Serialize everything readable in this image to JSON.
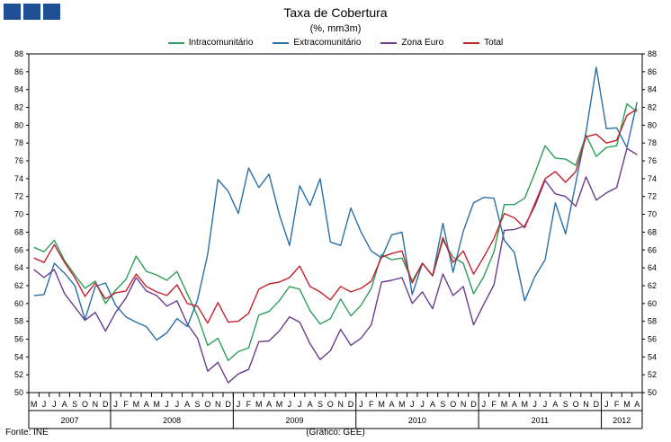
{
  "chart_data": {
    "type": "line",
    "title": "Taxa de Cobertura",
    "subtitle": "(%, mm3m)",
    "ylim": [
      50,
      88
    ],
    "yticks": [
      50,
      52,
      54,
      56,
      58,
      60,
      62,
      64,
      66,
      68,
      70,
      72,
      74,
      76,
      78,
      80,
      82,
      84,
      86,
      88
    ],
    "grid": false,
    "legend_position": "top",
    "month_labels": [
      "M",
      "J",
      "J",
      "A",
      "S",
      "O",
      "N",
      "D",
      "J",
      "F",
      "M",
      "A",
      "M",
      "J",
      "J",
      "A",
      "S",
      "O",
      "N",
      "D",
      "J",
      "F",
      "M",
      "A",
      "M",
      "J",
      "J",
      "A",
      "S",
      "O",
      "N",
      "D",
      "J",
      "F",
      "M",
      "A",
      "M",
      "J",
      "J",
      "A",
      "S",
      "O",
      "N",
      "D",
      "J",
      "F",
      "M",
      "A",
      "M",
      "J",
      "J",
      "A",
      "S",
      "O",
      "N",
      "D",
      "J",
      "F",
      "M",
      "A"
    ],
    "years": [
      {
        "label": "2007",
        "start": 0,
        "end": 8
      },
      {
        "label": "2008",
        "start": 8,
        "end": 20
      },
      {
        "label": "2009",
        "start": 20,
        "end": 32
      },
      {
        "label": "2010",
        "start": 32,
        "end": 44
      },
      {
        "label": "2011",
        "start": 44,
        "end": 56
      },
      {
        "label": "2012",
        "start": 56,
        "end": 60
      }
    ],
    "series": [
      {
        "name": "Intracomunitário",
        "color": "#2e9e5b",
        "values": [
          66.3,
          65.8,
          67.1,
          64.8,
          63.2,
          61.7,
          62.5,
          60.0,
          61.5,
          62.7,
          65.3,
          63.6,
          63.2,
          62.6,
          63.6,
          61.1,
          58.6,
          55.3,
          56.1,
          53.6,
          54.6,
          55.0,
          58.7,
          59.1,
          60.3,
          61.9,
          61.6,
          59.2,
          57.7,
          58.3,
          60.5,
          58.6,
          59.8,
          61.7,
          65.5,
          64.9,
          65.1,
          62.5,
          64.5,
          63.1,
          67.1,
          65.2,
          64.5,
          61.1,
          63.0,
          65.8,
          71.1,
          71.1,
          71.8,
          74.6,
          77.7,
          76.3,
          76.2,
          75.5,
          78.9,
          76.5,
          77.5,
          77.7,
          82.4,
          81.5
        ]
      },
      {
        "name": "Extracomunitário",
        "color": "#2b6fa8",
        "values": [
          60.9,
          61.0,
          64.5,
          63.4,
          62.0,
          58.2,
          61.9,
          62.3,
          59.8,
          58.5,
          57.9,
          57.4,
          55.9,
          56.7,
          58.3,
          57.4,
          60.4,
          65.5,
          73.9,
          72.6,
          70.1,
          75.2,
          73.0,
          74.5,
          70.0,
          66.5,
          73.2,
          71.0,
          74.0,
          66.9,
          66.5,
          70.7,
          68.0,
          65.9,
          65.1,
          67.7,
          68.0,
          61.0,
          64.5,
          63.1,
          69.0,
          63.5,
          68.1,
          71.3,
          71.9,
          71.8,
          67.1,
          65.7,
          60.3,
          63.0,
          64.9,
          71.3,
          67.8,
          73.5,
          79.2,
          86.5,
          79.6,
          79.7,
          77.5,
          82.6
        ]
      },
      {
        "name": "Zona Euro",
        "color": "#6a3d8f",
        "values": [
          63.8,
          62.9,
          63.8,
          61.1,
          59.6,
          58.1,
          59.0,
          56.9,
          59.0,
          60.6,
          62.9,
          61.4,
          60.9,
          59.7,
          60.3,
          57.7,
          56.1,
          52.4,
          53.4,
          51.1,
          52.1,
          52.6,
          55.7,
          55.8,
          56.9,
          58.5,
          57.9,
          55.5,
          53.7,
          54.7,
          57.1,
          55.3,
          56.1,
          57.6,
          62.4,
          62.6,
          62.9,
          60.0,
          61.3,
          59.4,
          63.3,
          60.9,
          61.9,
          57.6,
          59.9,
          62.1,
          68.2,
          68.3,
          68.7,
          70.9,
          73.8,
          72.3,
          72.0,
          70.9,
          74.2,
          71.6,
          72.4,
          73.0,
          77.4,
          76.7
        ]
      },
      {
        "name": "Total",
        "color": "#c4222c",
        "values": [
          65.1,
          64.6,
          66.6,
          64.6,
          62.9,
          60.8,
          62.3,
          60.5,
          61.2,
          61.4,
          63.3,
          61.9,
          61.3,
          60.9,
          62.1,
          60.0,
          59.7,
          57.8,
          60.1,
          57.9,
          58.0,
          58.9,
          61.6,
          62.2,
          62.4,
          62.9,
          64.2,
          61.9,
          61.3,
          60.4,
          61.9,
          61.3,
          61.7,
          62.5,
          65.2,
          65.6,
          65.9,
          62.3,
          64.5,
          63.1,
          67.4,
          64.6,
          65.9,
          63.3,
          65.2,
          67.3,
          70.1,
          69.6,
          68.5,
          71.2,
          74.0,
          74.8,
          73.6,
          74.8,
          78.7,
          79.0,
          78.0,
          78.3,
          81.1,
          81.8
        ]
      }
    ]
  },
  "footer": {
    "source": "Fonte: INE",
    "credit": "(Gráfico: GEE)"
  }
}
